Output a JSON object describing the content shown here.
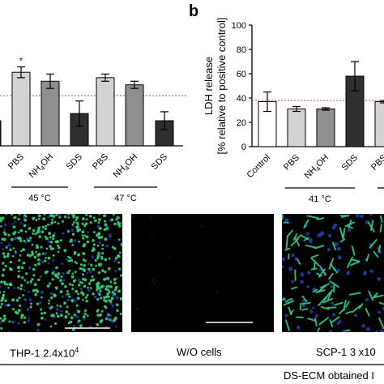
{
  "panel_b_letter": "b",
  "chart_data": [
    {
      "type": "bar",
      "panel": "a (partial)",
      "categories": [
        "",
        "PBS",
        "NH4OH",
        "SDS",
        "PBS",
        "NH4OH",
        "SDS"
      ],
      "tick_labels": [
        {
          "text": "PBS"
        },
        {
          "text": "NH",
          "sub": "4",
          "tail": "OH"
        },
        {
          "text": "SDS"
        },
        {
          "text": "PBS"
        },
        {
          "text": "NH",
          "sub": "4",
          "tail": "OH"
        },
        {
          "text": "SDS"
        }
      ],
      "values": [
        44,
        71,
        66,
        48,
        68,
        64,
        44
      ],
      "errors": [
        0,
        3,
        4,
        7,
        2,
        2,
        5
      ],
      "colors": [
        "#1e1e1e",
        "#d3d3d3",
        "#8f8f8f",
        "#2f2f2f",
        "#d3d3d3",
        "#8f8f8f",
        "#2f2f2f"
      ],
      "significance": [
        {
          "index": 1,
          "text": "*"
        }
      ],
      "reference_line": 58,
      "group_labels": [
        "45 °C",
        "47 °C"
      ],
      "ylim": [
        30,
        100
      ]
    },
    {
      "type": "bar",
      "panel": "b",
      "categories": [
        "Control",
        "PBS",
        "NH4OH",
        "SDS",
        "PBS"
      ],
      "tick_labels": [
        {
          "text": "Control"
        },
        {
          "text": "PBS"
        },
        {
          "text": "NH",
          "sub": "4",
          "tail": "OH"
        },
        {
          "text": "SDS"
        },
        {
          "text": "PBS"
        }
      ],
      "values": [
        37,
        31,
        31,
        58,
        37
      ],
      "errors": [
        8,
        2,
        1,
        12,
        1
      ],
      "colors": [
        "#ffffff",
        "#d3d3d3",
        "#8f8f8f",
        "#2f2f2f",
        "#d3d3d3"
      ],
      "reference_line": 38,
      "ylabel_line1": "LDH release",
      "ylabel_line2": "[% relative to positive control]",
      "yticks": [
        0,
        20,
        40,
        60,
        80,
        100
      ],
      "ylim": [
        0,
        100
      ],
      "group_labels": [
        "41 °C"
      ]
    }
  ],
  "micrographs": [
    {
      "caption": "THP-1 2.4x10",
      "sup": "4"
    },
    {
      "caption": "W/O cells",
      "sup": ""
    },
    {
      "caption": "SCP-1 3 x10",
      "sup": ""
    }
  ],
  "bottom_label": "DS-ECM obtained I"
}
